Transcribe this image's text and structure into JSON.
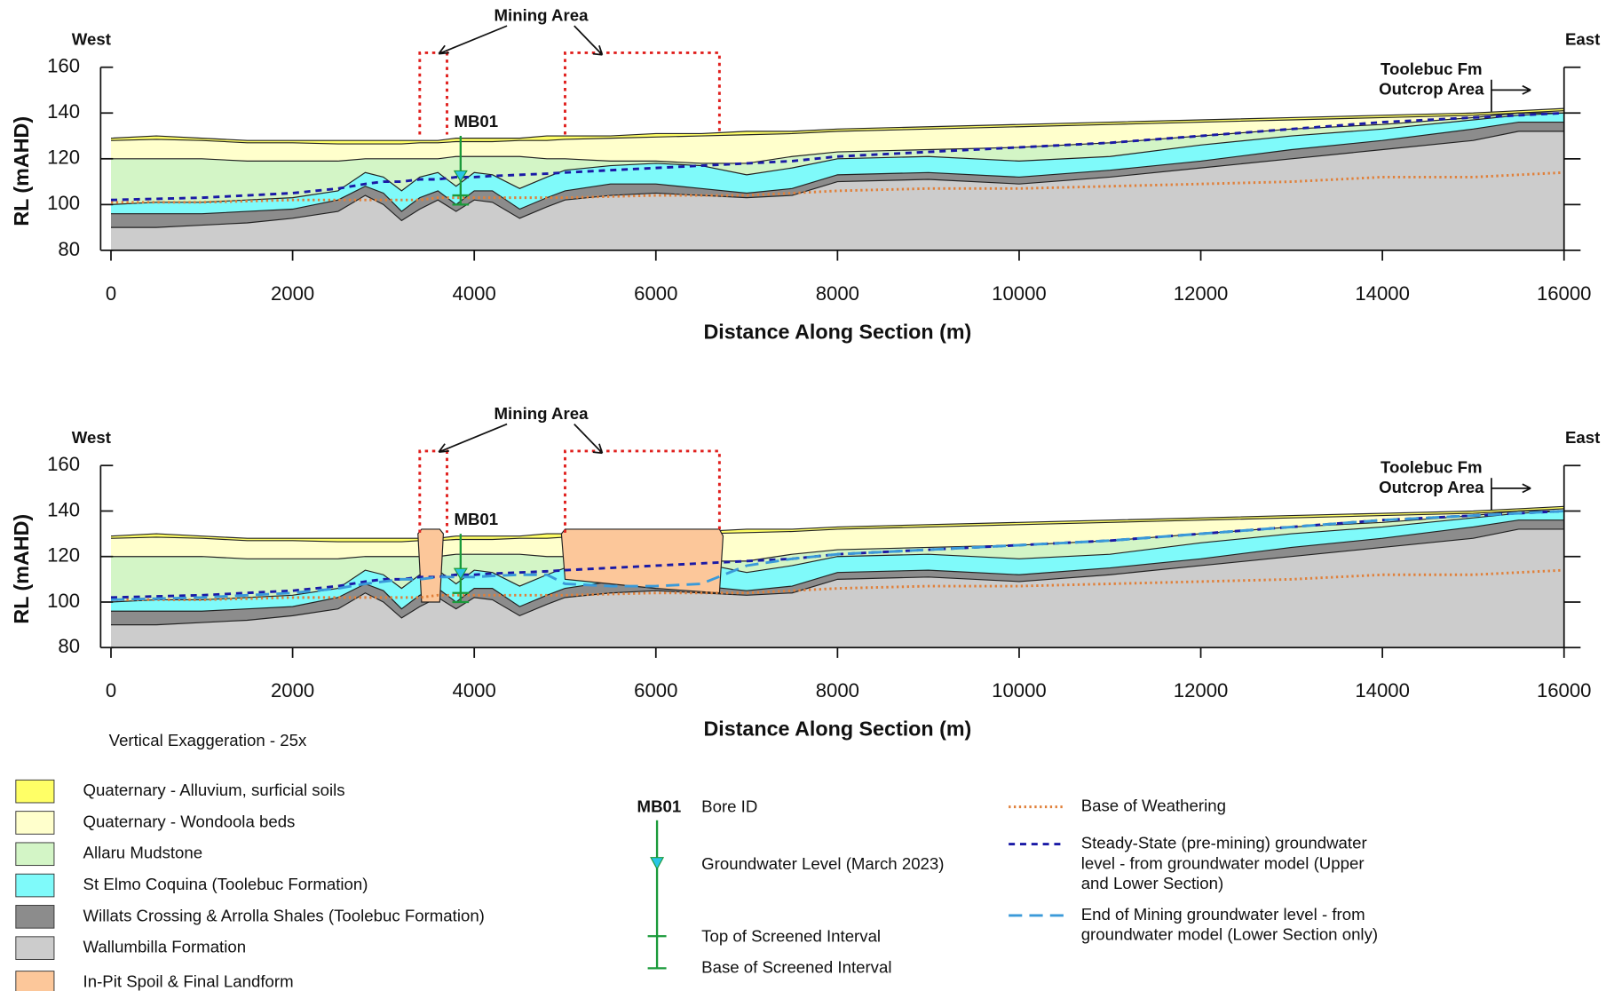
{
  "chart_data": [
    {
      "type": "section",
      "west": "West",
      "east": "East",
      "xlabel": "Distance Along Section (m)",
      "ylabel": "RL (mAHD)",
      "xlim": [
        0,
        16000
      ],
      "xticks": [
        0,
        2000,
        4000,
        6000,
        8000,
        10000,
        12000,
        14000,
        16000
      ],
      "ylim": [
        80,
        160
      ],
      "yticks": [
        80,
        100,
        120,
        140,
        160
      ],
      "mining_label": "Mining Area",
      "mining_areas": [
        [
          3400,
          3700
        ],
        [
          5000,
          6700
        ]
      ],
      "outcrop_label": [
        "Toolebuc Fm",
        "Outcrop Area"
      ],
      "outcrop_x": 15200,
      "bore": {
        "id": "MB01",
        "x": 3850,
        "top": 130,
        "groundwater_level": 112,
        "screen_top": 104,
        "screen_base": 100
      },
      "x": [
        0,
        500,
        1000,
        1500,
        2000,
        2500,
        2800,
        3000,
        3200,
        3400,
        3600,
        3800,
        4000,
        4200,
        4500,
        4800,
        5000,
        5500,
        6000,
        6500,
        7000,
        7500,
        8000,
        9000,
        10000,
        11000,
        12000,
        13000,
        14000,
        15000,
        15500,
        16000
      ],
      "series": [
        {
          "kind": "layer",
          "color": "#ffff66",
          "values": [
            129,
            130,
            129,
            128,
            128,
            128,
            128,
            128,
            128,
            128,
            128,
            129,
            129,
            129,
            129,
            130,
            130,
            130,
            131,
            131,
            132,
            132,
            133,
            134,
            135,
            136,
            137,
            138,
            139,
            140,
            141,
            142
          ]
        },
        {
          "kind": "layer",
          "color": "#ffffcc",
          "values": [
            128,
            128.5,
            128,
            127,
            127,
            126.5,
            126.5,
            126.5,
            126.5,
            127,
            127,
            127.5,
            127.5,
            127.5,
            128,
            128,
            128.5,
            129,
            129.5,
            130,
            130.5,
            131,
            132,
            133,
            134,
            135,
            136,
            137,
            138,
            139,
            140,
            141
          ]
        },
        {
          "kind": "layer",
          "color": "#d3f5c6",
          "values": [
            120,
            120,
            120,
            119,
            119,
            119,
            120,
            120,
            120,
            120,
            120,
            121,
            121,
            121,
            121,
            120,
            120,
            119,
            119,
            118,
            118,
            121,
            123,
            124,
            125,
            127,
            130,
            133,
            135,
            138,
            140,
            140
          ]
        },
        {
          "kind": "layer",
          "color": "#7ffafa",
          "values": [
            100,
            101,
            101,
            102,
            103,
            106,
            114,
            112,
            106,
            112,
            114,
            108,
            114,
            113,
            107,
            112,
            115,
            117,
            118,
            117,
            113,
            116,
            120,
            121,
            119,
            121,
            126,
            130,
            133,
            137,
            139,
            140
          ]
        },
        {
          "kind": "layer",
          "color": "#8c8c8c",
          "values": [
            96,
            96,
            96,
            97,
            98,
            102,
            108,
            105,
            97,
            103,
            106,
            100,
            106,
            106,
            98,
            103,
            106,
            109,
            109,
            107,
            105,
            107,
            113,
            114,
            112,
            115,
            119,
            124,
            128,
            133,
            136,
            136
          ]
        },
        {
          "kind": "layer",
          "color": "#cccccc",
          "values": [
            90,
            90,
            91,
            92,
            94,
            97,
            104,
            100,
            93,
            98,
            102,
            97,
            102,
            101,
            94,
            99,
            102,
            104,
            105,
            104,
            103,
            104,
            110,
            111,
            109,
            112,
            116,
            120,
            124,
            128,
            132,
            132
          ]
        },
        {
          "kind": "line",
          "style": "dotted",
          "color": "#e0803a",
          "values": [
            101,
            101,
            101,
            101.5,
            102,
            102,
            102,
            102,
            102,
            102,
            103,
            103,
            103,
            103,
            103,
            103,
            103,
            103.5,
            104,
            104,
            104,
            105,
            106,
            107,
            107,
            108,
            109,
            110,
            112,
            112,
            113,
            114
          ]
        },
        {
          "kind": "line",
          "style": "dashed",
          "color": "#1a1aa6",
          "values": [
            102,
            102.5,
            103,
            104,
            105,
            107,
            109,
            110,
            110,
            111,
            111,
            112,
            112,
            112.5,
            113,
            113.5,
            114,
            115,
            116,
            117,
            118,
            119,
            121,
            123,
            125,
            127,
            130,
            133,
            136,
            138,
            139,
            140
          ]
        }
      ]
    },
    {
      "type": "section",
      "west": "West",
      "east": "East",
      "xlabel": "Distance Along Section (m)",
      "ylabel": "RL (mAHD)",
      "xlim": [
        0,
        16000
      ],
      "xticks": [
        0,
        2000,
        4000,
        6000,
        8000,
        10000,
        12000,
        14000,
        16000
      ],
      "ylim": [
        80,
        160
      ],
      "yticks": [
        80,
        100,
        120,
        140,
        160
      ],
      "mining_label": "Mining Area",
      "mining_areas": [
        [
          3400,
          3700
        ],
        [
          5000,
          6700
        ]
      ],
      "outcrop_label": [
        "Toolebuc Fm",
        "Outcrop Area"
      ],
      "outcrop_x": 15200,
      "bore": {
        "id": "MB01",
        "x": 3850,
        "top": 130,
        "groundwater_level": 112,
        "screen_top": 104,
        "screen_base": 100
      },
      "x": [
        0,
        500,
        1000,
        1500,
        2000,
        2500,
        2800,
        3000,
        3200,
        3400,
        3600,
        3800,
        4000,
        4200,
        4500,
        4800,
        5000,
        5500,
        6000,
        6500,
        7000,
        7500,
        8000,
        9000,
        10000,
        11000,
        12000,
        13000,
        14000,
        15000,
        15500,
        16000
      ],
      "series": [
        {
          "kind": "layer",
          "name": "Quaternary - Alluvium, surficial soils",
          "color": "#ffff66",
          "values": [
            129,
            130,
            129,
            128,
            128,
            128,
            128,
            128,
            128,
            128,
            128,
            129,
            129,
            129,
            129,
            130,
            130,
            130,
            131,
            131,
            132,
            132,
            133,
            134,
            135,
            136,
            137,
            138,
            139,
            140,
            141,
            142
          ]
        },
        {
          "kind": "layer",
          "name": "Quaternary - Wondoola beds",
          "color": "#ffffcc",
          "values": [
            128,
            128.5,
            128,
            127,
            127,
            126.5,
            126.5,
            126.5,
            126.5,
            127,
            127,
            127.5,
            127.5,
            127.5,
            128,
            128,
            128.5,
            129,
            129.5,
            130,
            130.5,
            131,
            132,
            133,
            134,
            135,
            136,
            137,
            138,
            139,
            140,
            141
          ]
        },
        {
          "kind": "layer",
          "name": "Allaru Mudstone",
          "color": "#d3f5c6",
          "values": [
            120,
            120,
            120,
            119,
            119,
            119,
            120,
            120,
            120,
            120,
            120,
            121,
            121,
            121,
            121,
            120,
            120,
            119,
            119,
            118,
            118,
            121,
            123,
            124,
            125,
            127,
            130,
            133,
            135,
            138,
            140,
            140
          ]
        },
        {
          "kind": "layer",
          "name": "St Elmo Coquina (Toolebuc Formation)",
          "color": "#7ffafa",
          "values": [
            100,
            101,
            101,
            102,
            103,
            106,
            114,
            112,
            106,
            112,
            114,
            108,
            114,
            113,
            107,
            112,
            115,
            117,
            118,
            117,
            113,
            116,
            120,
            121,
            119,
            121,
            126,
            130,
            133,
            137,
            139,
            140
          ]
        },
        {
          "kind": "layer",
          "name": "Willats Crossing & Arrolla Shales (Toolebuc Formation)",
          "color": "#8c8c8c",
          "values": [
            96,
            96,
            96,
            97,
            98,
            102,
            108,
            105,
            97,
            103,
            106,
            100,
            106,
            106,
            98,
            103,
            106,
            109,
            109,
            107,
            105,
            107,
            113,
            114,
            112,
            115,
            119,
            124,
            128,
            133,
            136,
            136
          ]
        },
        {
          "kind": "layer",
          "name": "Wallumbilla Formation",
          "color": "#cccccc",
          "values": [
            90,
            90,
            91,
            92,
            94,
            97,
            104,
            100,
            93,
            98,
            102,
            97,
            102,
            101,
            94,
            99,
            102,
            104,
            105,
            104,
            103,
            104,
            110,
            111,
            109,
            112,
            116,
            120,
            124,
            128,
            132,
            132
          ]
        },
        {
          "kind": "spoil",
          "name": "In-Pit Spoil & Final Landform",
          "color": "#fcc79a",
          "x": [
            3380,
            3420,
            3620,
            3660,
            3620,
            3420,
            null,
            5000,
            4960,
            5000,
            6700,
            6740,
            6700,
            6000,
            5500
          ],
          "values": [
            130,
            132,
            132,
            130,
            100,
            100,
            null,
            110,
            130,
            132,
            132,
            129,
            104,
            106,
            108
          ]
        },
        {
          "kind": "line",
          "name": "Base of Weathering",
          "style": "dotted",
          "color": "#e0803a",
          "values": [
            101,
            101,
            101,
            101.5,
            102,
            102,
            102,
            102,
            102,
            102,
            103,
            103,
            103,
            103,
            103,
            103,
            103,
            103.5,
            104,
            104,
            104,
            105,
            106,
            107,
            107,
            108,
            109,
            110,
            112,
            112,
            113,
            114
          ]
        },
        {
          "kind": "line",
          "name": "Steady-State (pre-mining) groundwater level - from groundwater model (Upper and Lower Section)",
          "style": "dashed",
          "color": "#1a1aa6",
          "values": [
            102,
            102.5,
            103,
            104,
            105,
            107,
            109,
            110,
            110,
            111,
            111,
            112,
            112,
            112.5,
            113,
            113.5,
            114,
            115,
            116,
            117,
            118,
            119,
            121,
            123,
            125,
            127,
            130,
            133,
            136,
            138,
            139,
            140
          ]
        },
        {
          "kind": "line",
          "name": "End of Mining groundwater level - from groundwater model (Lower Section only)",
          "style": "longdash",
          "color": "#3a9ad9",
          "values": [
            101,
            101.5,
            102,
            103,
            104,
            106,
            108,
            109,
            110,
            110,
            111,
            111,
            111,
            111.5,
            112,
            112,
            108,
            107,
            107,
            108,
            116,
            119,
            121,
            123,
            125,
            127,
            130,
            133,
            136,
            138,
            139,
            140
          ]
        }
      ]
    }
  ],
  "note": "Vertical Exaggeration - 25x",
  "bore_legend": {
    "id_label": "Bore ID",
    "groundwater_label": "Groundwater Level (March 2023)",
    "screen_top_label": "Top of Screened Interval",
    "screen_base_label": "Base of Screened Interval"
  }
}
